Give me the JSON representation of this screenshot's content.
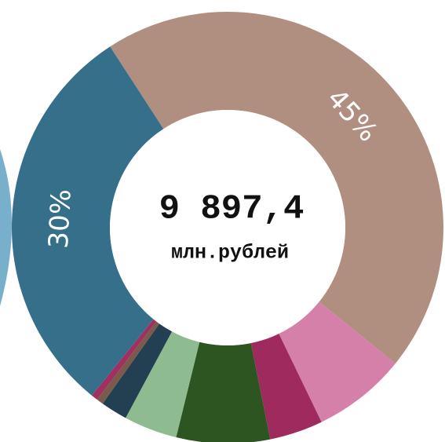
{
  "chart_data": {
    "type": "donut",
    "center_value": "9 897,4",
    "center_unit": "млн.рублей",
    "values": [
      45,
      7,
      4,
      7,
      4,
      2,
      0.5,
      0.5,
      30
    ],
    "value_labels": [
      "45%",
      null,
      null,
      null,
      null,
      null,
      null,
      null,
      "30%"
    ],
    "colors": [
      "#b08e80",
      "#d580a8",
      "#9e2a5e",
      "#2d5522",
      "#8fbb90",
      "#233f52",
      "#7a5a4a",
      "#a03060",
      "#356f8a"
    ]
  }
}
